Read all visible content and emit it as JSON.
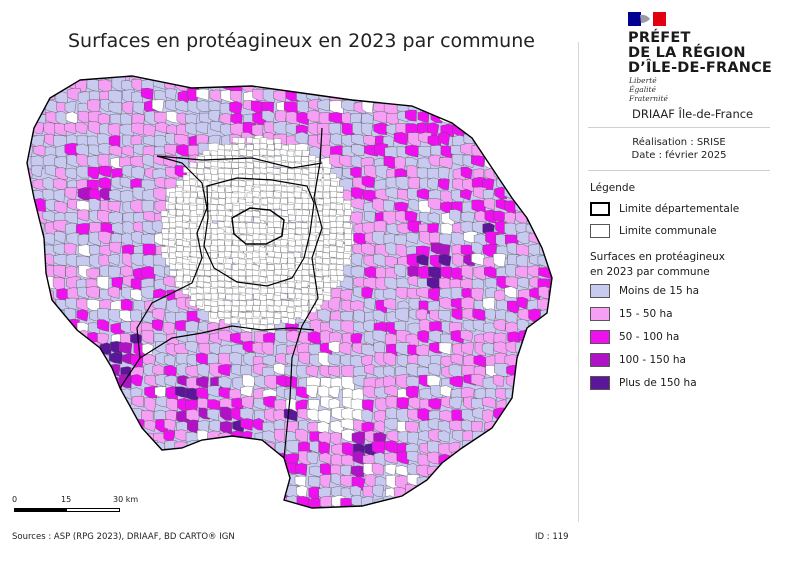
{
  "map_title": "Surfaces en protéagineux en 2023 par commune",
  "header": {
    "prefet_lines": [
      "PRÉFET",
      "DE LA RÉGION",
      "D’ÎLE-DE-FRANCE"
    ],
    "devise_lines": [
      "Liberté",
      "Égalité",
      "Fraternité"
    ],
    "organisation": "DRIAAF Île-de-France",
    "realisation": "Réalisation : SRISE",
    "date": "Date : février 2025"
  },
  "legend": {
    "title": "Légende",
    "dept_limit": "Limite départementale",
    "commune_limit": "Limite communale",
    "classes_title_line1": "Surfaces en protéagineux",
    "classes_title_line2": "en 2023 par commune",
    "classes": [
      {
        "label": "Moins de 15 ha",
        "color": "#c9caf0"
      },
      {
        "label": "15 - 50 ha",
        "color": "#f5a0f5"
      },
      {
        "label": "50 - 100 ha",
        "color": "#ee10ee"
      },
      {
        "label": "100 - 150 ha",
        "color": "#b012c6"
      },
      {
        "label": "Plus de 150 ha",
        "color": "#5c1699"
      }
    ]
  },
  "scale_bar": {
    "labels": [
      "0",
      "15",
      "30 km"
    ]
  },
  "footer": {
    "sources": "Sources : ASP (RPG 2023), DRIAAF, BD CARTO® IGN",
    "id": "ID : 119"
  },
  "colors": {
    "no_data": "#ffffff",
    "commune_border": "#555555",
    "dept_border": "#000000",
    "brand_blue": "#000091",
    "brand_red": "#e1000f"
  }
}
